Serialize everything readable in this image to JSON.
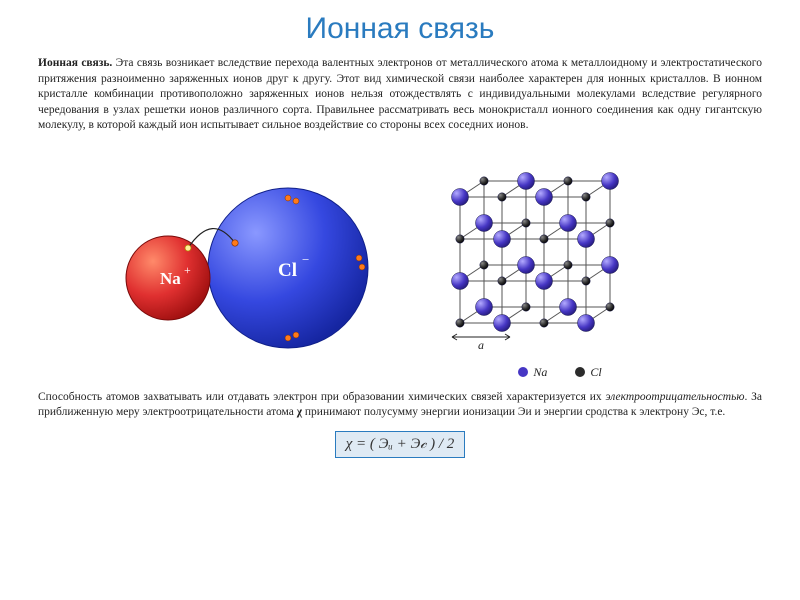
{
  "title": "Ионная связь",
  "paragraph1": {
    "lead": "Ионная связь.",
    "body": " Эта связь возникает вследствие перехода валентных электронов от металлического атома к металлоидному и электростатического притяжения разноименно заряженных ионов друг к другу. Этот вид химической связи наиболее характерен для ионных кристаллов. В ионном кристалле комбинации противоположно заряженных ионов нельзя отождествлять с индивидуальными молекулами вследствие регулярного чередования в узлах решетки ионов различного сорта. Правильнее рассматривать весь монокристалл ионного соединения как одну гигантскую молекулу, в которой каждый ион испытывает сильное воздействие со стороны всех соседних ионов."
  },
  "ions_fig": {
    "na": {
      "label": "Na",
      "charge": "+",
      "color": "#d42020",
      "highlight": "#ff6a4a",
      "text_color": "#ffffff",
      "radius": 42
    },
    "cl": {
      "label": "Cl",
      "charge": "−",
      "color": "#2b3ed8",
      "highlight": "#6a7af2",
      "text_color": "#ffffff",
      "radius": 80
    },
    "electron_color": "#ff7a1a",
    "outline_color": "#222222"
  },
  "lattice": {
    "rows": 4,
    "cols": 4,
    "layers": 2,
    "node_a_color": "#4636c4",
    "node_b_color": "#2b2b2b",
    "edge_color": "#555555",
    "axis_label": "a",
    "legend": {
      "a": "Na",
      "b": "Cl"
    }
  },
  "paragraph2": {
    "p1": "Способность атомов захватывать или отдавать электрон при образовании химических связей характеризуется их ",
    "emph": "электроотрицательностью",
    "p2": ". За приближенную меру электроотрицательности атома ",
    "chi": "χ",
    "p3": " принимают полусумму энергии ионизации Эи и энергии сродства к электрону Эс, т.е."
  },
  "formula": "χ = ( Эᵤ + Э𝒸 ) / 2",
  "colors": {
    "title": "#2a7bbf",
    "formula_bg": "#dfeaf4",
    "formula_border": "#2a7bbf"
  }
}
